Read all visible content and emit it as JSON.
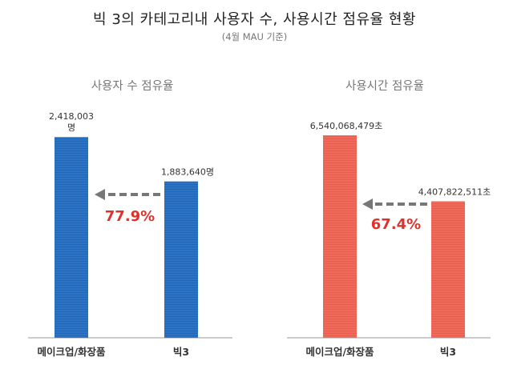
{
  "title": "빅 3의 카테고리내 사용자 수, 사용시간 점유율 현황",
  "subtitle": "(4월 MAU 기준)",
  "colors": {
    "blue": "#2a73c5",
    "red": "#ef6a5a",
    "pct": "#e0312b",
    "arrow": "#777777",
    "axis": "#999999"
  },
  "chart_data": [
    {
      "type": "bar",
      "title": "사용자 수 점유율",
      "categories": [
        "메이크업/화장품",
        "빅3"
      ],
      "values": [
        2418003,
        1883640
      ],
      "value_labels": [
        "2,418,003\n명",
        "1,883,640명"
      ],
      "ylim": [
        0,
        2700000
      ],
      "annotation": "77.9%"
    },
    {
      "type": "bar",
      "title": "사용시간 점유율",
      "categories": [
        "메이크업/화장품",
        "빅3"
      ],
      "values": [
        6540068479,
        4407822511
      ],
      "value_labels": [
        "6,540,068,479초",
        "4,407,822,511초"
      ],
      "ylim": [
        0,
        7240000000
      ],
      "annotation": "67.4%"
    }
  ]
}
